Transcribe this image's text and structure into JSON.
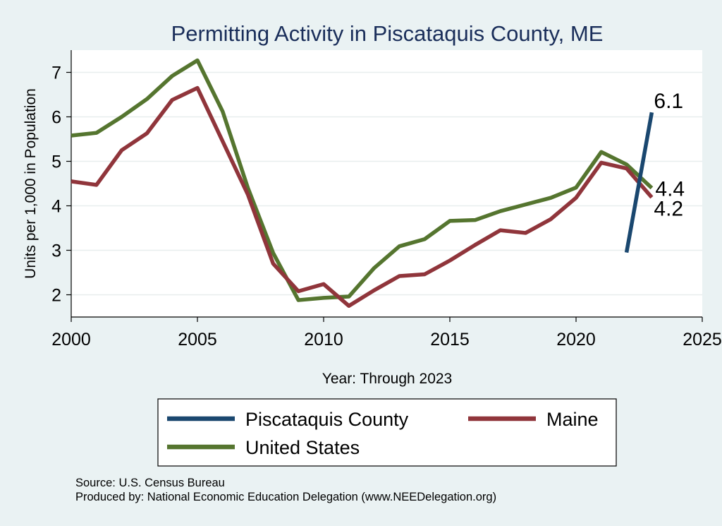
{
  "chart_data": {
    "type": "line",
    "title": "Permitting Activity in Piscataquis County, ME",
    "xlabel": "Year: Through 2023",
    "ylabel": "Units per 1,000 in Population",
    "xlim": [
      2000,
      2025
    ],
    "ylim": [
      1.5,
      7.5
    ],
    "xticks": [
      2000,
      2005,
      2010,
      2015,
      2020,
      2025
    ],
    "yticks": [
      2,
      3,
      4,
      5,
      6,
      7
    ],
    "grid": true,
    "legend_position": "bottom",
    "series": [
      {
        "name": "Piscataquis County",
        "color": "#1a476f",
        "x": [
          2022,
          2023
        ],
        "values": [
          2.95,
          6.1
        ],
        "end_label": "6.1"
      },
      {
        "name": "Maine",
        "color": "#90353b",
        "x": [
          2000,
          2001,
          2002,
          2003,
          2004,
          2005,
          2006,
          2007,
          2008,
          2009,
          2010,
          2011,
          2012,
          2013,
          2014,
          2015,
          2016,
          2017,
          2018,
          2019,
          2020,
          2021,
          2022,
          2023
        ],
        "values": [
          4.55,
          4.47,
          5.25,
          5.63,
          6.38,
          6.65,
          5.45,
          4.25,
          2.7,
          2.08,
          2.24,
          1.75,
          2.1,
          2.42,
          2.46,
          2.77,
          3.12,
          3.45,
          3.39,
          3.7,
          4.18,
          4.97,
          4.84,
          4.19
        ],
        "end_label": "4.2"
      },
      {
        "name": "United States",
        "color": "#55752f",
        "x": [
          2000,
          2001,
          2002,
          2003,
          2004,
          2005,
          2006,
          2007,
          2008,
          2009,
          2010,
          2011,
          2012,
          2013,
          2014,
          2015,
          2016,
          2017,
          2018,
          2019,
          2020,
          2021,
          2022,
          2023
        ],
        "values": [
          5.58,
          5.64,
          6.0,
          6.4,
          6.92,
          7.27,
          6.12,
          4.4,
          2.94,
          1.88,
          1.93,
          1.96,
          2.6,
          3.09,
          3.25,
          3.66,
          3.68,
          3.88,
          4.03,
          4.18,
          4.41,
          5.21,
          4.93,
          4.4
        ],
        "end_label": "4.4"
      }
    ],
    "source_note": "Source: U.S. Census Bureau",
    "producer_note": "Produced by: National Economic Education Delegation (www.NEEDelegation.org)"
  }
}
